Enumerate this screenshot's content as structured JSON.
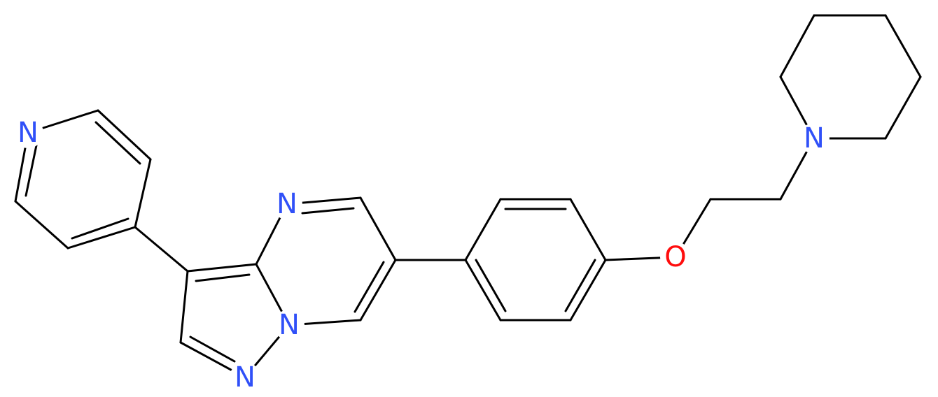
{
  "atoms": [
    "N",
    "N",
    "N",
    "N",
    "O",
    "N"
  ]
}
